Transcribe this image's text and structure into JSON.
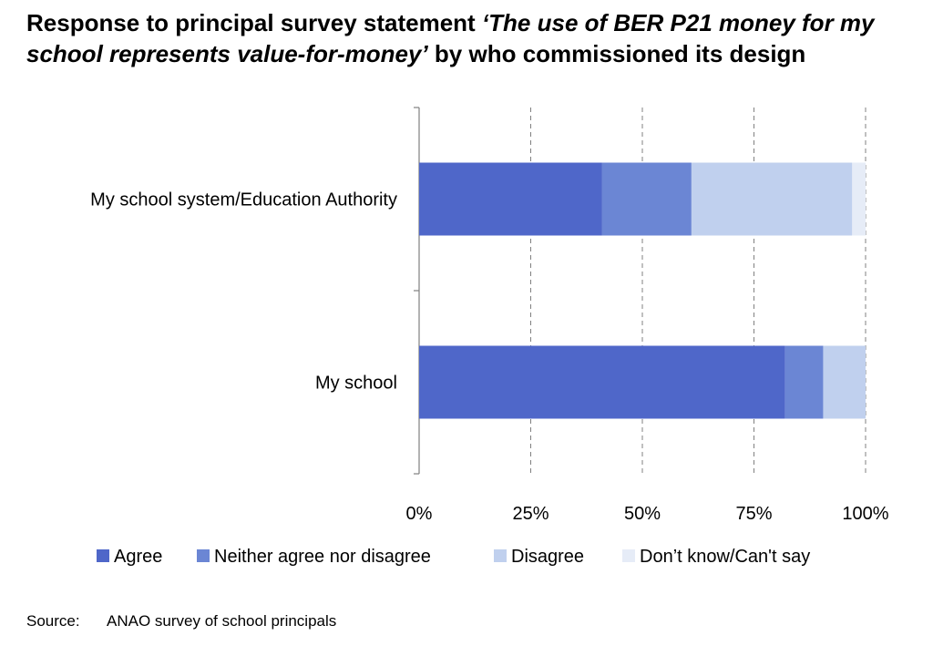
{
  "title": {
    "part1": "Response to principal survey statement ",
    "part2_italic": "‘The use of BER P21 money for my school represents value-for-money’",
    "part3": " by who commissioned its design"
  },
  "source": {
    "label": "Source:",
    "text": "ANAO survey of school principals"
  },
  "chart_data": {
    "type": "bar",
    "orientation": "horizontal",
    "stacked": true,
    "categories": [
      "My school system/Education Authority",
      "My school"
    ],
    "series": [
      {
        "name": "Agree",
        "color": "#4F67C9",
        "values": [
          41,
          82
        ]
      },
      {
        "name": "Neither agree nor disagree",
        "color": "#6B86D4",
        "values": [
          20,
          8.5
        ]
      },
      {
        "name": "Disagree",
        "color": "#C0D0EE",
        "values": [
          36,
          9.5
        ]
      },
      {
        "name": "Don’t know/Can't say",
        "color": "#E6ECF7",
        "values": [
          3,
          0
        ]
      }
    ],
    "xlim": [
      0,
      100
    ],
    "xticks": [
      "0%",
      "25%",
      "50%",
      "75%",
      "100%"
    ],
    "grid": "vertical dashed",
    "legend": "bottom"
  }
}
